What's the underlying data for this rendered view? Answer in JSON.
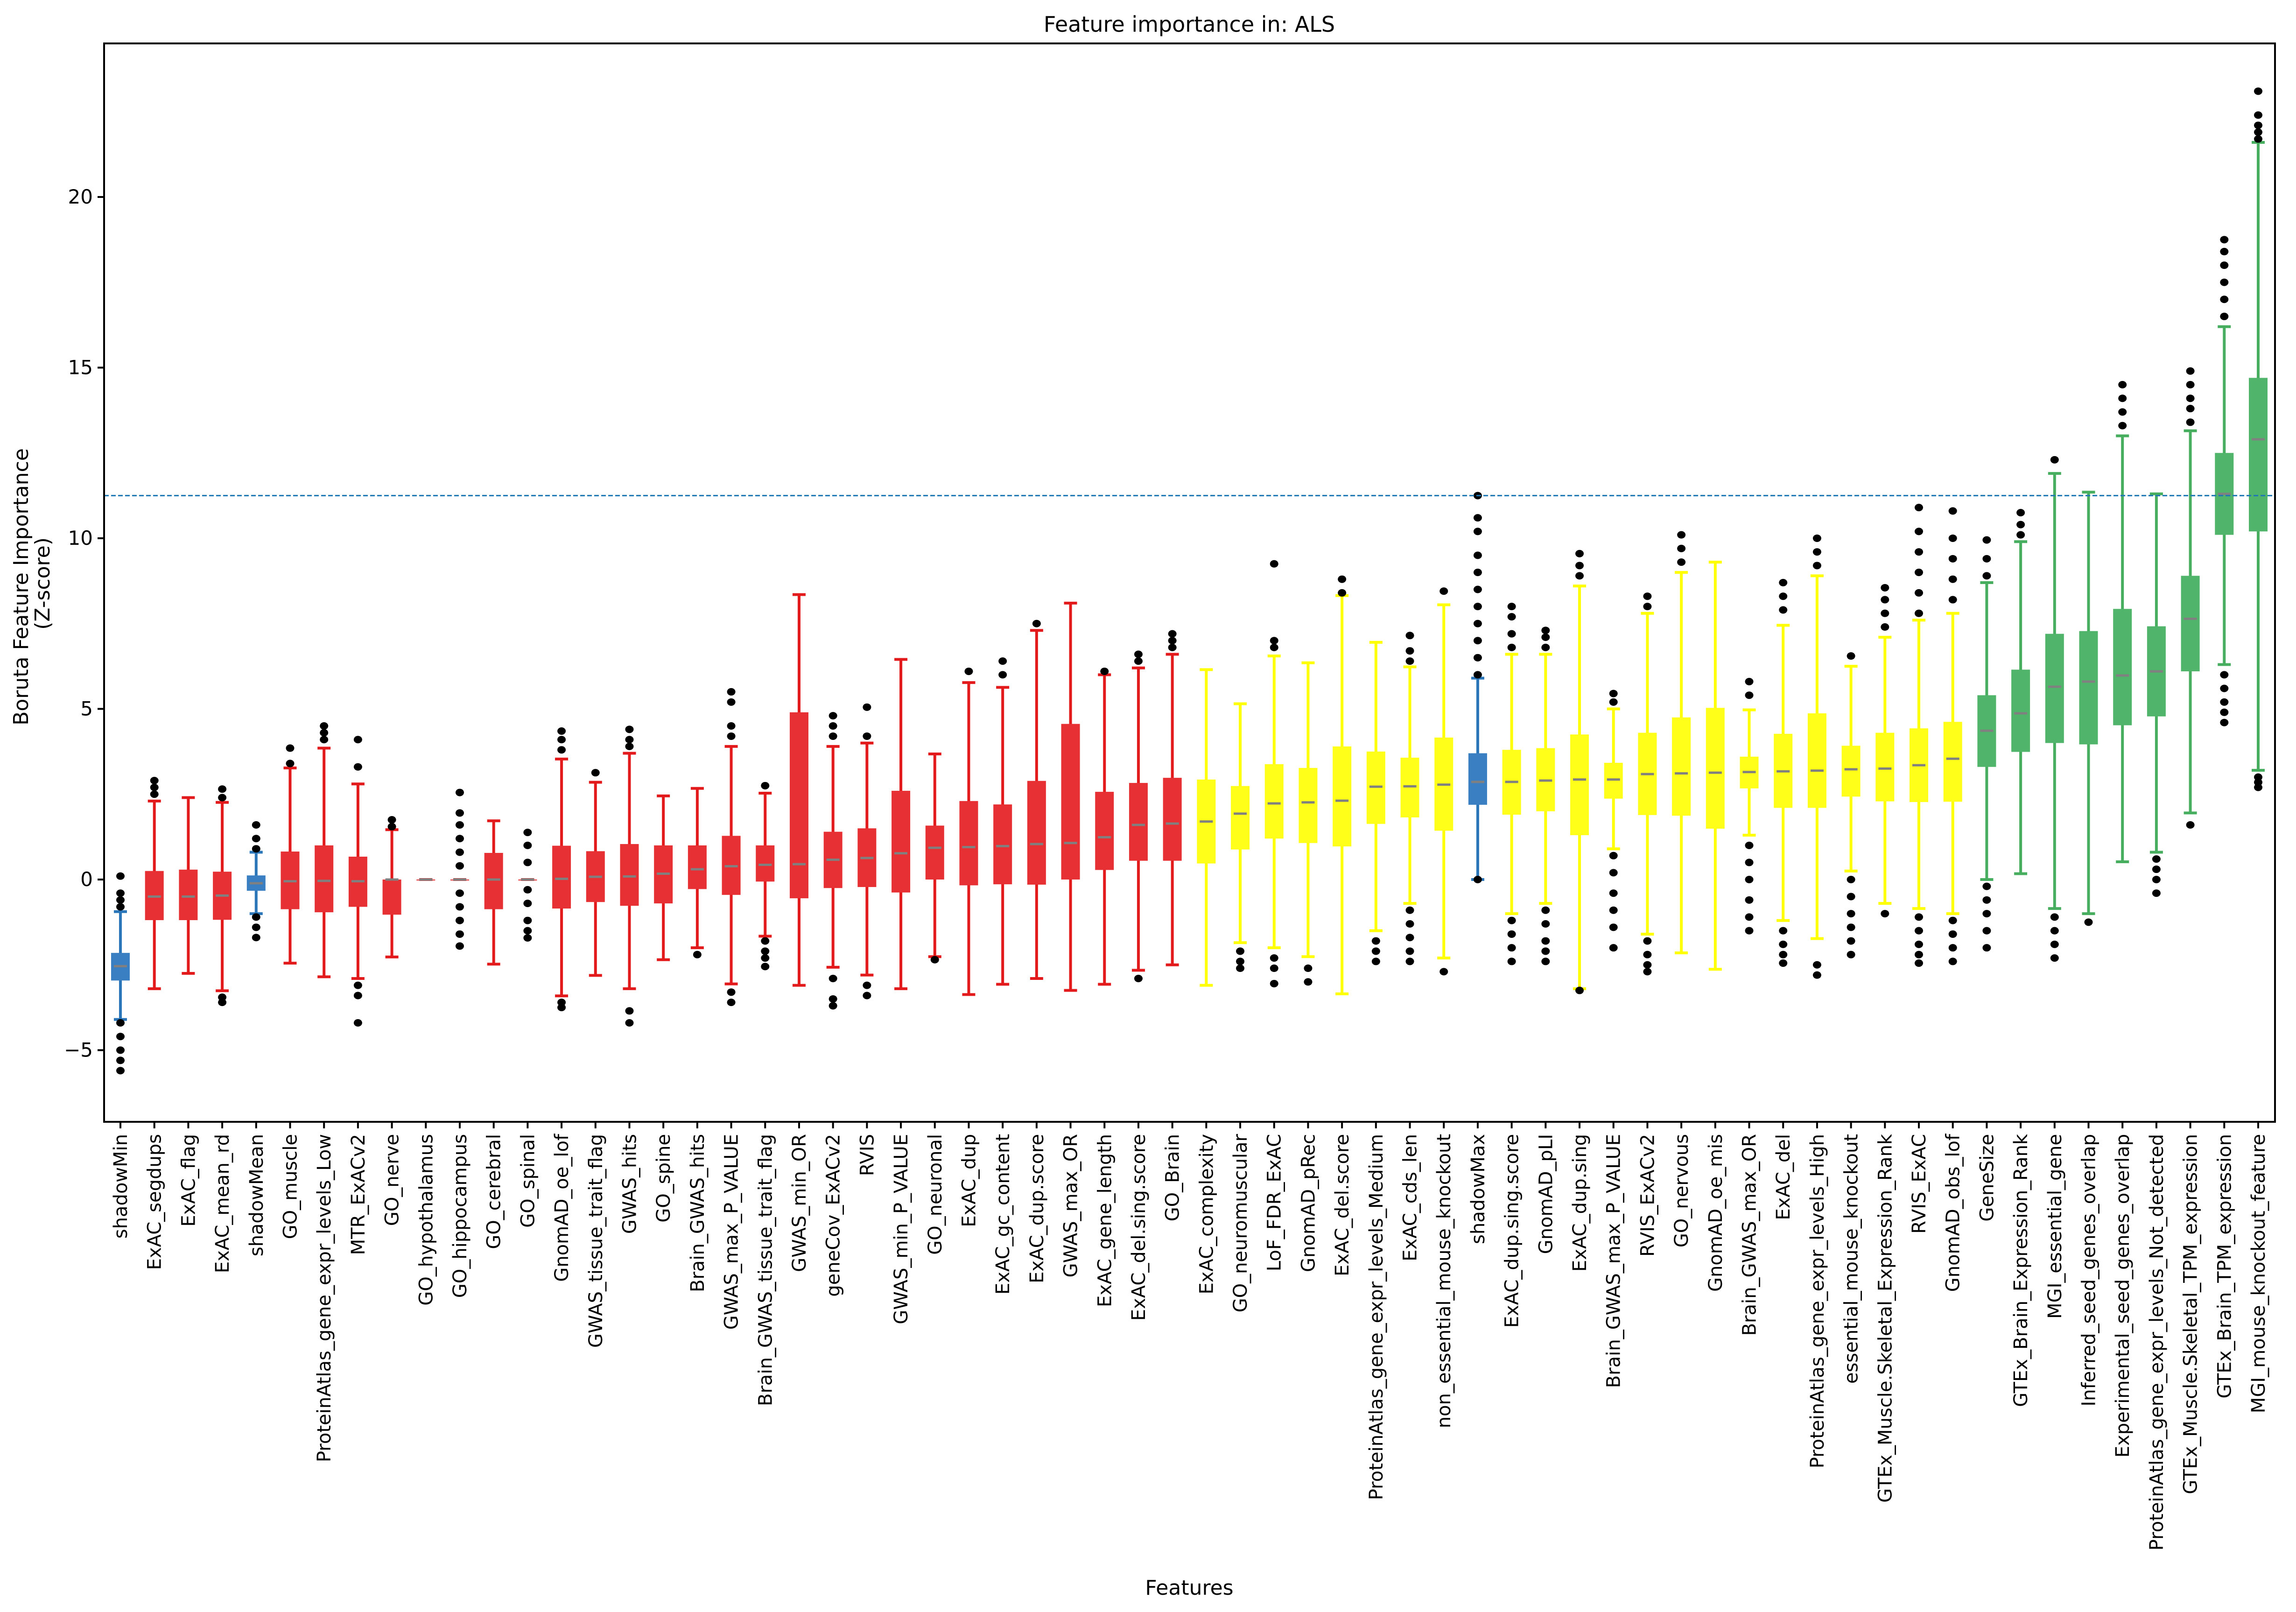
{
  "chart_data": {
    "type": "boxplot",
    "title": "Feature importance in: ALS",
    "xlabel": "Features",
    "ylabel_lines": [
      "Boruta Feature Importance",
      "(Z-score)"
    ],
    "ylim": [
      -7.1,
      24.5
    ],
    "yticks": [
      -5,
      0,
      5,
      10,
      15,
      20
    ],
    "ytick_labels": [
      "−5",
      "0",
      "5",
      "10",
      "15",
      "20"
    ],
    "grid": false,
    "legend": "none",
    "threshold_line": {
      "value": 11.25,
      "style": "dashed",
      "color": "#1f77b4"
    },
    "group_colors": {
      "shadow": {
        "box": "#3a7fc1",
        "whisker": "#2a76b8"
      },
      "rejected": {
        "box": "#e63033",
        "whisker": "#e31a1c"
      },
      "tentative": {
        "box": "#ffff1a",
        "whisker": "#ffff00"
      },
      "confirmed": {
        "box": "#50b46a",
        "whisker": "#47ad5f"
      },
      "median": "#808080",
      "outlier": "#000000"
    },
    "stats_order": [
      "whisker_low",
      "q1",
      "median",
      "q3",
      "whisker_high"
    ],
    "features": [
      {
        "name": "shadowMin",
        "group": "shadow",
        "stats": [
          -4.1,
          -2.96,
          -2.54,
          -2.15,
          -0.94
        ],
        "outliers": [
          0.1,
          -0.4,
          -0.6,
          -0.8,
          -4.2,
          -4.6,
          -5.0,
          -5.3,
          -5.6
        ]
      },
      {
        "name": "ExAC_segdups",
        "group": "rejected",
        "stats": [
          -3.2,
          -1.19,
          -0.5,
          0.25,
          2.3
        ],
        "outliers": [
          2.5,
          2.7,
          2.9
        ]
      },
      {
        "name": "ExAC_flag",
        "group": "rejected",
        "stats": [
          -2.75,
          -1.19,
          -0.5,
          0.29,
          2.4
        ],
        "outliers": []
      },
      {
        "name": "ExAC_mean_rd",
        "group": "rejected",
        "stats": [
          -3.26,
          -1.18,
          -0.47,
          0.23,
          2.26
        ],
        "outliers": [
          2.4,
          2.65,
          -3.45,
          -3.6
        ]
      },
      {
        "name": "shadowMean",
        "group": "shadow",
        "stats": [
          -1.0,
          -0.33,
          -0.11,
          0.12,
          0.8
        ],
        "outliers": [
          0.9,
          1.2,
          1.6,
          -1.1,
          -1.4,
          -1.7
        ]
      },
      {
        "name": "GO_muscle",
        "group": "rejected",
        "stats": [
          -2.45,
          -0.87,
          -0.05,
          0.82,
          3.27
        ],
        "outliers": [
          3.4,
          3.85
        ]
      },
      {
        "name": "ProteinAtlas_gene_expr_levels_Low",
        "group": "rejected",
        "stats": [
          -2.85,
          -0.96,
          -0.04,
          1.0,
          3.85
        ],
        "outliers": [
          4.1,
          4.3,
          4.5
        ]
      },
      {
        "name": "MTR_ExACv2",
        "group": "rejected",
        "stats": [
          -2.9,
          -0.8,
          -0.05,
          0.67,
          2.8
        ],
        "outliers": [
          3.3,
          4.1,
          -3.1,
          -3.4,
          -4.2
        ]
      },
      {
        "name": "GO_nerve",
        "group": "rejected",
        "stats": [
          -2.27,
          -1.03,
          0.0,
          0.0,
          1.46
        ],
        "outliers": [
          1.55,
          1.75
        ]
      },
      {
        "name": "GO_hypothalamus",
        "group": "rejected",
        "stats": [
          0,
          0,
          0,
          0,
          0
        ],
        "outliers": []
      },
      {
        "name": "GO_hippocampus",
        "group": "rejected",
        "stats": [
          0,
          0,
          0,
          0,
          0
        ],
        "outliers": [
          2.55,
          1.95,
          1.6,
          1.2,
          0.8,
          0.4,
          -0.4,
          -0.8,
          -1.2,
          -1.6,
          -1.95
        ]
      },
      {
        "name": "GO_cerebral",
        "group": "rejected",
        "stats": [
          -2.48,
          -0.87,
          0.0,
          0.78,
          1.72
        ],
        "outliers": []
      },
      {
        "name": "GO_spinal",
        "group": "rejected",
        "stats": [
          0,
          0,
          0,
          0,
          0
        ],
        "outliers": [
          1.38,
          1.0,
          0.5,
          -0.3,
          -0.7,
          -1.2,
          -1.5,
          -1.71
        ]
      },
      {
        "name": "GnomAD_oe_lof",
        "group": "rejected",
        "stats": [
          -3.41,
          -0.85,
          0.02,
          0.99,
          3.53
        ],
        "outliers": [
          3.8,
          4.1,
          4.35,
          -3.6,
          -3.75
        ]
      },
      {
        "name": "GWAS_tissue_trait_flag",
        "group": "rejected",
        "stats": [
          -2.81,
          -0.66,
          0.08,
          0.83,
          2.85
        ],
        "outliers": [
          3.13
        ]
      },
      {
        "name": "GWAS_hits",
        "group": "rejected",
        "stats": [
          -3.2,
          -0.77,
          0.09,
          1.04,
          3.7
        ],
        "outliers": [
          3.9,
          4.1,
          4.4,
          -3.85,
          -4.2
        ]
      },
      {
        "name": "GO_spine",
        "group": "rejected",
        "stats": [
          -2.35,
          -0.7,
          0.17,
          1.0,
          2.45
        ],
        "outliers": []
      },
      {
        "name": "Brain_GWAS_hits",
        "group": "rejected",
        "stats": [
          -2.0,
          -0.28,
          0.3,
          1.0,
          2.67
        ],
        "outliers": [
          -2.2
        ]
      },
      {
        "name": "GWAS_max_P_VALUE",
        "group": "rejected",
        "stats": [
          -3.06,
          -0.45,
          0.39,
          1.28,
          3.9
        ],
        "outliers": [
          4.2,
          4.5,
          5.2,
          5.5,
          -3.3,
          -3.6
        ]
      },
      {
        "name": "Brain_GWAS_tissue_trait_flag",
        "group": "rejected",
        "stats": [
          -1.66,
          -0.06,
          0.43,
          1.0,
          2.53
        ],
        "outliers": [
          2.75,
          -1.8,
          -2.1,
          -2.3,
          -2.55
        ]
      },
      {
        "name": "GWAS_min_OR",
        "group": "rejected",
        "stats": [
          -3.1,
          -0.55,
          0.45,
          4.9,
          8.35
        ],
        "outliers": []
      },
      {
        "name": "geneCov_ExACv2",
        "group": "rejected",
        "stats": [
          -2.57,
          -0.25,
          0.58,
          1.4,
          3.9
        ],
        "outliers": [
          4.2,
          4.5,
          4.8,
          -2.9,
          -3.5,
          -3.7
        ]
      },
      {
        "name": "RVIS",
        "group": "rejected",
        "stats": [
          -2.8,
          -0.22,
          0.63,
          1.5,
          4.0
        ],
        "outliers": [
          4.2,
          5.05,
          -3.1,
          -3.4
        ]
      },
      {
        "name": "GWAS_min_P_VALUE",
        "group": "rejected",
        "stats": [
          -3.2,
          -0.38,
          0.77,
          2.6,
          6.45
        ],
        "outliers": []
      },
      {
        "name": "GO_neuronal",
        "group": "rejected",
        "stats": [
          -2.26,
          0.0,
          0.93,
          1.58,
          3.68
        ],
        "outliers": [
          -2.35
        ]
      },
      {
        "name": "ExAC_dup",
        "group": "rejected",
        "stats": [
          -3.37,
          -0.17,
          0.95,
          2.3,
          5.77
        ],
        "outliers": [
          6.1
        ]
      },
      {
        "name": "ExAC_gc_content",
        "group": "rejected",
        "stats": [
          -3.07,
          -0.14,
          0.98,
          2.2,
          5.63
        ],
        "outliers": [
          6.0,
          6.4
        ]
      },
      {
        "name": "ExAC_dup.score",
        "group": "rejected",
        "stats": [
          -2.9,
          -0.15,
          1.04,
          2.89,
          7.3
        ],
        "outliers": [
          7.5
        ]
      },
      {
        "name": "GWAS_max_OR",
        "group": "rejected",
        "stats": [
          -3.25,
          0.0,
          1.07,
          4.56,
          8.1
        ],
        "outliers": []
      },
      {
        "name": "ExAC_gene_length",
        "group": "rejected",
        "stats": [
          -3.07,
          0.28,
          1.24,
          2.57,
          6.0
        ],
        "outliers": [
          6.1
        ]
      },
      {
        "name": "ExAC_del.sing.score",
        "group": "rejected",
        "stats": [
          -2.66,
          0.55,
          1.6,
          2.83,
          6.2
        ],
        "outliers": [
          6.4,
          6.6,
          -2.9
        ]
      },
      {
        "name": "GO_Brain",
        "group": "rejected",
        "stats": [
          -2.5,
          0.55,
          1.64,
          2.98,
          6.6
        ],
        "outliers": [
          6.8,
          7.0,
          7.2
        ]
      },
      {
        "name": "ExAC_complexity",
        "group": "tentative",
        "stats": [
          -3.1,
          0.47,
          1.7,
          2.93,
          6.15
        ],
        "outliers": []
      },
      {
        "name": "GO_neuromuscular",
        "group": "tentative",
        "stats": [
          -1.85,
          0.88,
          1.93,
          2.74,
          5.15
        ],
        "outliers": [
          -2.1,
          -2.4,
          -2.6
        ]
      },
      {
        "name": "LoF_FDR_ExAC",
        "group": "tentative",
        "stats": [
          -2.0,
          1.2,
          2.23,
          3.38,
          6.55
        ],
        "outliers": [
          6.8,
          7.0,
          9.25,
          -2.3,
          -2.6,
          -3.05
        ]
      },
      {
        "name": "GnomAD_pRec",
        "group": "tentative",
        "stats": [
          -2.26,
          1.07,
          2.26,
          3.27,
          6.35
        ],
        "outliers": [
          -2.6,
          -3.0
        ]
      },
      {
        "name": "ExAC_del.score",
        "group": "tentative",
        "stats": [
          -3.35,
          0.97,
          2.31,
          3.9,
          8.32
        ],
        "outliers": [
          8.4,
          8.8
        ]
      },
      {
        "name": "ProteinAtlas_gene_expr_levels_Medium",
        "group": "tentative",
        "stats": [
          -1.5,
          1.63,
          2.72,
          3.75,
          6.95
        ],
        "outliers": [
          -1.8,
          -2.1,
          -2.4
        ]
      },
      {
        "name": "ExAC_cds_len",
        "group": "tentative",
        "stats": [
          -0.7,
          1.82,
          2.73,
          3.57,
          6.23
        ],
        "outliers": [
          6.4,
          6.7,
          7.15,
          -0.9,
          -1.3,
          -1.7,
          -2.1,
          -2.4
        ]
      },
      {
        "name": "non_essential_mouse_knockout",
        "group": "tentative",
        "stats": [
          -2.3,
          1.43,
          2.78,
          4.16,
          8.05
        ],
        "outliers": [
          8.45,
          -2.7
        ]
      },
      {
        "name": "shadowMax",
        "group": "shadow",
        "stats": [
          0.0,
          2.19,
          2.86,
          3.7,
          5.9
        ],
        "outliers": [
          6.0,
          6.5,
          7.0,
          7.5,
          8.0,
          8.5,
          9.0,
          9.5,
          10.2,
          10.6,
          11.25,
          0.0
        ]
      },
      {
        "name": "ExAC_dup.sing.score",
        "group": "tentative",
        "stats": [
          -1.0,
          1.9,
          2.86,
          3.8,
          6.6
        ],
        "outliers": [
          6.8,
          7.2,
          7.7,
          8.0,
          -1.2,
          -1.6,
          -2.0,
          -2.4
        ]
      },
      {
        "name": "GnomAD_pLI",
        "group": "tentative",
        "stats": [
          -0.7,
          2.0,
          2.9,
          3.85,
          6.6
        ],
        "outliers": [
          6.8,
          7.1,
          7.3,
          -0.9,
          -1.3,
          -1.8,
          -2.1,
          -2.4
        ]
      },
      {
        "name": "ExAC_dup.sing",
        "group": "tentative",
        "stats": [
          -3.2,
          1.3,
          2.93,
          4.25,
          8.6
        ],
        "outliers": [
          8.9,
          9.2,
          9.55,
          -3.25
        ]
      },
      {
        "name": "Brain_GWAS_max_P_VALUE",
        "group": "tentative",
        "stats": [
          0.9,
          2.37,
          2.93,
          3.42,
          5.0
        ],
        "outliers": [
          5.2,
          5.45,
          0.7,
          0.2,
          -0.4,
          -0.9,
          -1.4,
          -2.0
        ]
      },
      {
        "name": "RVIS_ExACv2",
        "group": "tentative",
        "stats": [
          -1.6,
          1.89,
          3.09,
          4.3,
          7.8
        ],
        "outliers": [
          8.0,
          8.3,
          -1.8,
          -2.2,
          -2.5,
          -2.7
        ]
      },
      {
        "name": "GO_nervous",
        "group": "tentative",
        "stats": [
          -2.15,
          1.87,
          3.11,
          4.75,
          9.0
        ],
        "outliers": [
          9.3,
          9.7,
          10.1
        ]
      },
      {
        "name": "GnomAD_oe_mis",
        "group": "tentative",
        "stats": [
          -2.63,
          1.49,
          3.13,
          5.03,
          9.3
        ],
        "outliers": []
      },
      {
        "name": "Brain_GWAS_max_OR",
        "group": "tentative",
        "stats": [
          1.3,
          2.67,
          3.15,
          3.6,
          4.97
        ],
        "outliers": [
          5.4,
          5.8,
          1.0,
          0.5,
          0.0,
          -0.6,
          -1.1,
          -1.5
        ]
      },
      {
        "name": "ExAC_del",
        "group": "tentative",
        "stats": [
          -1.2,
          2.1,
          3.17,
          4.27,
          7.45
        ],
        "outliers": [
          7.9,
          8.3,
          8.7,
          -1.5,
          -1.9,
          -2.2,
          -2.45
        ]
      },
      {
        "name": "ProteinAtlas_gene_expr_levels_High",
        "group": "tentative",
        "stats": [
          -1.73,
          2.1,
          3.19,
          4.87,
          8.9
        ],
        "outliers": [
          9.2,
          9.6,
          10.0,
          -2.5,
          -2.8
        ]
      },
      {
        "name": "essential_mouse_knockout",
        "group": "tentative",
        "stats": [
          0.25,
          2.43,
          3.23,
          3.92,
          6.25
        ],
        "outliers": [
          6.55,
          0.0,
          -0.5,
          -1.0,
          -1.4,
          -1.8,
          -2.2
        ]
      },
      {
        "name": "GTEx_Muscle.Skeletal_Expression_Rank",
        "group": "tentative",
        "stats": [
          -0.7,
          2.29,
          3.25,
          4.3,
          7.1
        ],
        "outliers": [
          7.4,
          7.8,
          8.2,
          8.55,
          -1.0
        ]
      },
      {
        "name": "RVIS_ExAC",
        "group": "tentative",
        "stats": [
          -0.85,
          2.27,
          3.35,
          4.43,
          7.6
        ],
        "outliers": [
          7.8,
          8.4,
          9.0,
          9.6,
          10.2,
          10.9,
          -1.1,
          -1.5,
          -1.9,
          -2.2,
          -2.45
        ]
      },
      {
        "name": "GnomAD_obs_lof",
        "group": "tentative",
        "stats": [
          -1.0,
          2.28,
          3.54,
          4.62,
          7.8
        ],
        "outliers": [
          8.2,
          8.8,
          9.4,
          10.0,
          10.8,
          -1.2,
          -1.6,
          -2.0,
          -2.4
        ]
      },
      {
        "name": "GeneSize",
        "group": "confirmed",
        "stats": [
          0.0,
          3.3,
          4.36,
          5.4,
          8.7
        ],
        "outliers": [
          8.9,
          9.4,
          9.95,
          -0.2,
          -0.6,
          -1.0,
          -1.5,
          -2.0
        ]
      },
      {
        "name": "GTEx_Brain_Expression_Rank",
        "group": "confirmed",
        "stats": [
          0.17,
          3.74,
          4.87,
          6.15,
          9.9
        ],
        "outliers": [
          10.1,
          10.4,
          10.75
        ]
      },
      {
        "name": "MGI_essential_gene",
        "group": "confirmed",
        "stats": [
          -0.85,
          4.0,
          5.65,
          7.2,
          11.9
        ],
        "outliers": [
          12.3,
          -1.1,
          -1.5,
          -1.9,
          -2.3
        ]
      },
      {
        "name": "Inferred_seed_genes_overlap",
        "group": "confirmed",
        "stats": [
          -1.0,
          3.96,
          5.8,
          7.28,
          11.35
        ],
        "outliers": [
          -1.25
        ]
      },
      {
        "name": "Experimental_seed_genes_overlap",
        "group": "confirmed",
        "stats": [
          0.52,
          4.52,
          5.98,
          7.93,
          13.0
        ],
        "outliers": [
          13.3,
          13.7,
          14.1,
          14.5
        ]
      },
      {
        "name": "ProteinAtlas_gene_expr_levels_Not_detected",
        "group": "confirmed",
        "stats": [
          0.8,
          4.78,
          6.1,
          7.42,
          11.3
        ],
        "outliers": [
          0.6,
          0.3,
          0.0,
          -0.4
        ]
      },
      {
        "name": "GTEx_Muscle.Skeletal_TPM_expression",
        "group": "confirmed",
        "stats": [
          1.95,
          6.1,
          7.64,
          8.9,
          13.15
        ],
        "outliers": [
          13.4,
          13.8,
          14.1,
          14.5,
          14.9,
          1.6
        ]
      },
      {
        "name": "GTEx_Brain_TPM_expression",
        "group": "confirmed",
        "stats": [
          6.3,
          10.1,
          11.3,
          12.5,
          16.2
        ],
        "outliers": [
          16.5,
          17.0,
          17.5,
          18.0,
          18.4,
          18.75,
          6.0,
          5.6,
          5.2,
          4.9,
          4.6
        ]
      },
      {
        "name": "MGI_mouse_knockout_feature",
        "group": "confirmed",
        "stats": [
          3.2,
          10.2,
          12.9,
          14.7,
          21.6
        ],
        "outliers": [
          21.7,
          21.9,
          22.1,
          22.4,
          23.1,
          3.0,
          2.85,
          2.7
        ]
      }
    ]
  }
}
